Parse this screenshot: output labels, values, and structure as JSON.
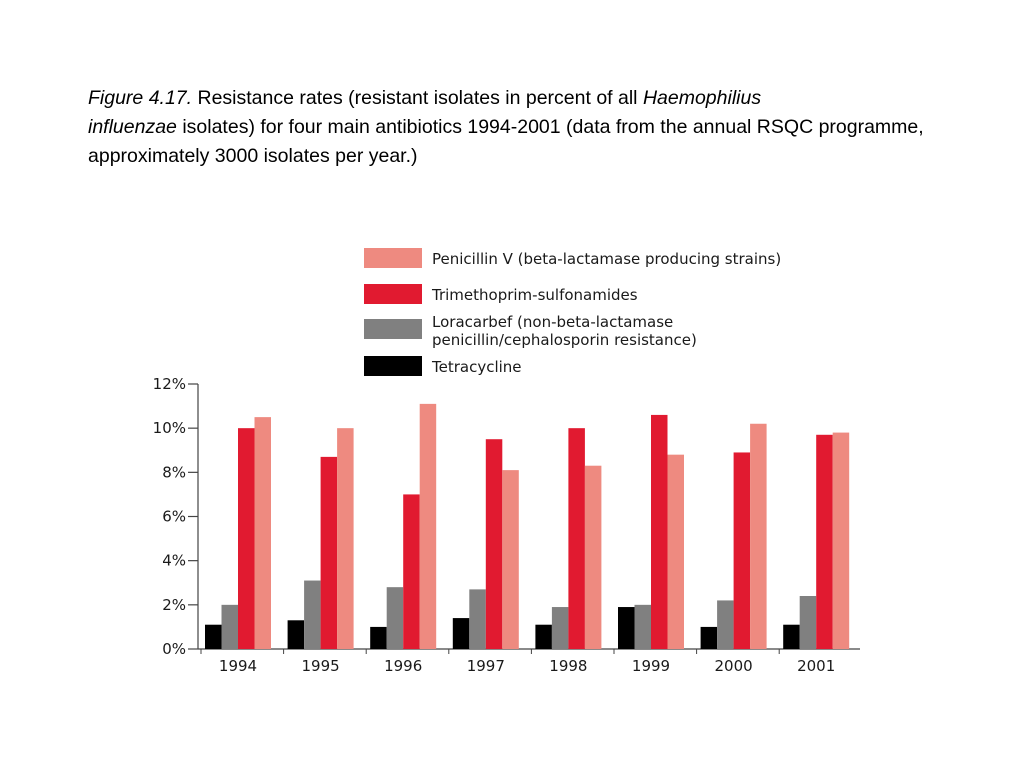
{
  "caption": {
    "figure_label": "Figure 4.17.",
    "text_1": " Resistance rates (resistant isolates in percent of all ",
    "organism_1": "Haemophilius",
    "organism_2": "influenzae",
    "text_2": " isolates) for four main antibiotics 1994-2001 (data from the annual RSQC programme, approximately 3000 isolates per year.)"
  },
  "chart_data": {
    "type": "bar",
    "categories": [
      "1994",
      "1995",
      "1996",
      "1997",
      "1998",
      "1999",
      "2000",
      "2001"
    ],
    "ylim": [
      0,
      12
    ],
    "yticks": [
      0,
      2,
      4,
      6,
      8,
      10,
      12
    ],
    "ytick_labels": [
      "0%",
      "2%",
      "4%",
      "6%",
      "8%",
      "10%",
      "12%"
    ],
    "grid": false,
    "legend_position": "top",
    "series": [
      {
        "name": "Tetracycline",
        "color": "#000000",
        "values": [
          1.1,
          1.3,
          1.0,
          1.4,
          1.1,
          1.9,
          1.0,
          1.1
        ]
      },
      {
        "name": "Loracarbef (non-beta-lactamase\npenicillin/cephalosporin resistance)",
        "color": "#808080",
        "values": [
          2.0,
          3.1,
          2.8,
          2.7,
          1.9,
          2.0,
          2.2,
          2.4
        ]
      },
      {
        "name": "Trimethoprim-sulfonamides",
        "color": "#e11a30",
        "values": [
          10.0,
          8.7,
          7.0,
          9.5,
          10.0,
          10.6,
          8.9,
          9.7
        ]
      },
      {
        "name": "Penicillin V (beta-lactamase producing strains)",
        "color": "#ee8a80",
        "values": [
          10.5,
          10.0,
          11.1,
          8.1,
          8.3,
          8.8,
          10.2,
          9.8
        ]
      }
    ],
    "legend_order": [
      3,
      2,
      1,
      0
    ]
  }
}
